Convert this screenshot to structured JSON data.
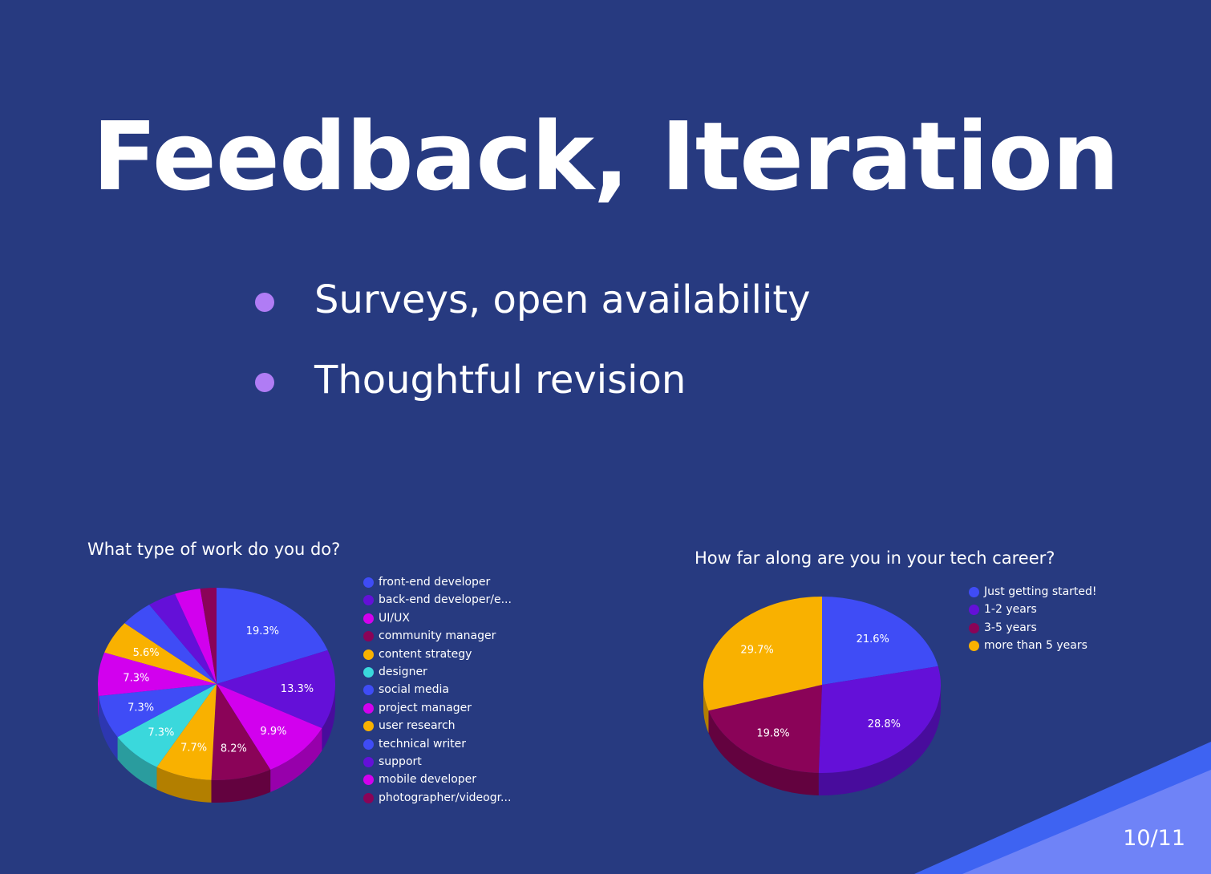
{
  "slide": {
    "title": "Feedback, Iteration",
    "bullets": [
      "Surveys, open availability",
      "Thoughtful revision"
    ],
    "page_number": "10/11",
    "colors": {
      "background": "#273a80",
      "bullet_dot": "#b07cf5",
      "corner_accent": "#4f6bf0"
    }
  },
  "chart_data": [
    {
      "type": "pie",
      "title": "What type of work do you do?",
      "labels": [
        "front-end developer",
        "back-end developer/e...",
        "UI/UX",
        "community manager",
        "content strategy",
        "designer",
        "social media",
        "project manager",
        "user research",
        "technical writer",
        "support",
        "mobile developer",
        "photographer/videogr..."
      ],
      "values": [
        19.3,
        13.3,
        9.9,
        8.2,
        7.7,
        7.3,
        7.3,
        7.3,
        5.6,
        4.5,
        3.9,
        3.5,
        2.2
      ],
      "value_labels": [
        "19.3%",
        "13.3%",
        "9.9%",
        "8.2%",
        "7.7%",
        "7.3%",
        "7.3%",
        "7.3%",
        "5.6%",
        "",
        "",
        "",
        ""
      ],
      "colors": [
        "#3f4cf6",
        "#6410d8",
        "#d200ee",
        "#8a0358",
        "#f9b100",
        "#3ad8dc",
        "#3f4cf6",
        "#d200ee",
        "#f9b100",
        "#3f4cf6",
        "#6410d8",
        "#d200ee",
        "#8a0358"
      ],
      "legend": "right",
      "three_d": true
    },
    {
      "type": "pie",
      "title": "How far along are you in your tech career?",
      "labels": [
        "Just getting started!",
        "1-2 years",
        "3-5 years",
        "more than 5 years"
      ],
      "values": [
        21.6,
        28.8,
        19.8,
        29.7
      ],
      "value_labels": [
        "21.6%",
        "28.8%",
        "19.8%",
        "29.7%"
      ],
      "colors": [
        "#3f4cf6",
        "#6410d8",
        "#8a0358",
        "#f9b100"
      ],
      "legend": "right",
      "three_d": true
    }
  ]
}
